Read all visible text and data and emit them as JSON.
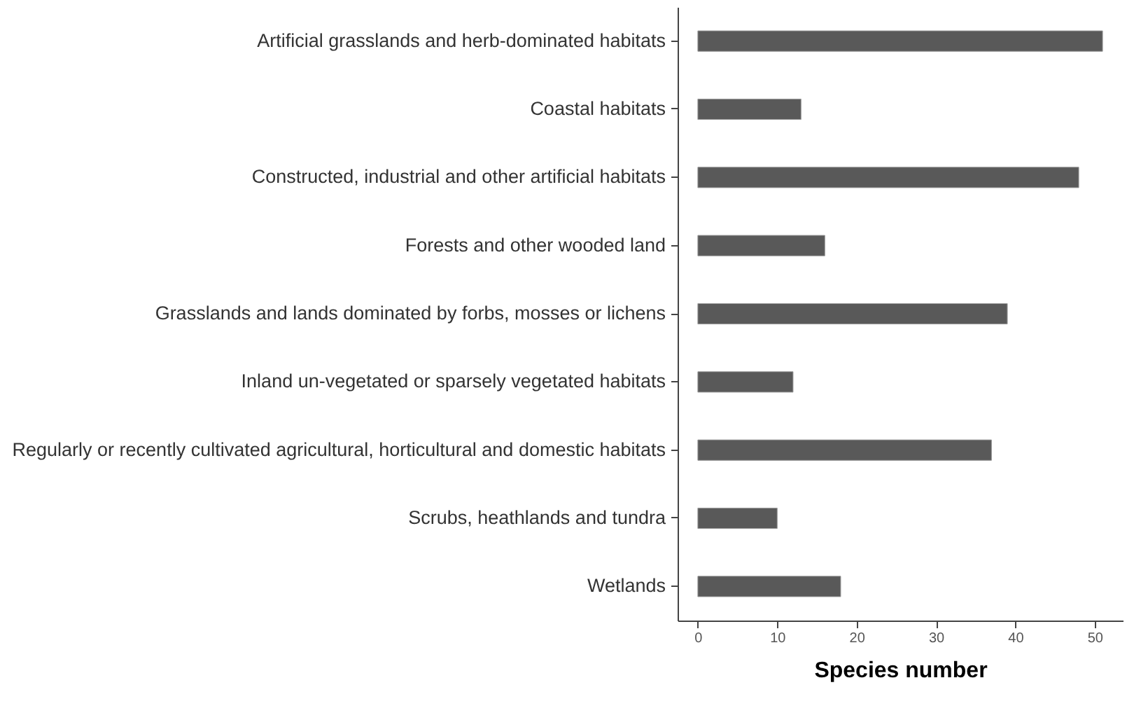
{
  "chart_data": {
    "type": "bar",
    "orientation": "horizontal",
    "xlabel": "Species number",
    "categories": [
      "Artificial grasslands and herb-dominated habitats",
      "Coastal habitats",
      "Constructed, industrial and other artificial habitats",
      "Forests and other wooded land",
      "Grasslands and lands dominated by forbs, mosses or lichens",
      "Inland un-vegetated or sparsely vegetated habitats",
      "Regularly or recently cultivated agricultural, horticultural and domestic habitats",
      "Scrubs, heathlands and tundra",
      "Wetlands"
    ],
    "values": [
      51,
      13,
      48,
      16,
      39,
      12,
      37,
      10,
      18
    ],
    "color": "#595959",
    "xlim": [
      -2.55,
      53.55
    ],
    "xticks": [
      0,
      10,
      20,
      30,
      40,
      50
    ],
    "grid": false
  }
}
